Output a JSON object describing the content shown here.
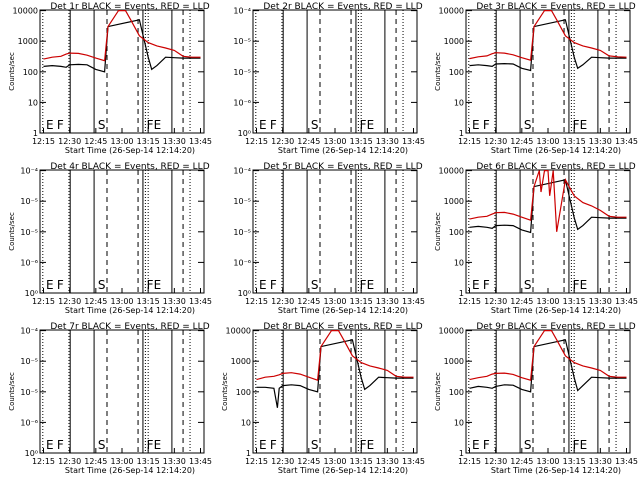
{
  "chart_data": [
    {
      "type": "line",
      "title": "Det 1r BLACK = Events, RED = LLD",
      "ylabel": "Counts/sec",
      "xlabel": "Start Time (26-Sep-14 12:14:20)",
      "yscale": "log",
      "ytick_labels": [
        "1",
        "10",
        "100",
        "1000",
        "10000"
      ],
      "xtick_labels": [
        "12:15",
        "12:30",
        "12:45",
        "13:00",
        "13:15",
        "13:30",
        "13:45"
      ],
      "marker_labels": [
        "E",
        "F",
        "S",
        "F",
        "E"
      ],
      "data_present": true,
      "series": [
        {
          "name": "BLACK = Events",
          "color": "#000000",
          "x": [
            "12:15",
            "12:20",
            "12:25",
            "12:28",
            "12:30",
            "12:35",
            "12:40",
            "12:45",
            "12:50",
            "12:52",
            "13:10",
            "13:15",
            "13:17",
            "13:20",
            "13:25",
            "13:30",
            "13:35",
            "13:40",
            "13:45"
          ],
          "values": [
            150,
            160,
            150,
            140,
            170,
            175,
            170,
            120,
            100,
            3000,
            5000,
            300,
            120,
            160,
            300,
            290,
            280,
            280,
            280
          ]
        },
        {
          "name": "RED = LLD",
          "color": "#cc0000",
          "x": [
            "12:15",
            "12:20",
            "12:25",
            "12:28",
            "12:30",
            "12:35",
            "12:40",
            "12:45",
            "12:50",
            "12:52",
            "12:58",
            "13:02",
            "13:05",
            "13:10",
            "13:15",
            "13:20",
            "13:25",
            "13:30",
            "13:35",
            "13:40",
            "13:45"
          ],
          "values": [
            260,
            300,
            320,
            380,
            410,
            400,
            350,
            280,
            230,
            3000,
            10000,
            10000,
            5000,
            1500,
            900,
            700,
            600,
            500,
            320,
            300,
            300
          ]
        }
      ]
    },
    {
      "type": "line",
      "title": "Det 2r BLACK = Events, RED = LLD",
      "ylabel": "",
      "xlabel": "Start Time (26-Sep-14 12:14:20)",
      "yscale": "log",
      "ytick_labels": [
        "10⁰",
        "10⁻⁶",
        "10⁻⁵",
        "10⁻⁵",
        "10⁻⁴"
      ],
      "xtick_labels": [
        "12:15",
        "12:30",
        "12:45",
        "13:00",
        "13:15",
        "13:30",
        "13:45"
      ],
      "marker_labels": [
        "E",
        "F",
        "S",
        "F",
        "E"
      ],
      "data_present": false,
      "series": []
    },
    {
      "type": "line",
      "title": "Det 3r BLACK = Events, RED = LLD",
      "ylabel": "Counts/sec",
      "xlabel": "Start Time (26-Sep-14 12:14:20)",
      "yscale": "log",
      "ytick_labels": [
        "1",
        "10",
        "100",
        "1000",
        "10000"
      ],
      "xtick_labels": [
        "12:15",
        "12:30",
        "12:45",
        "13:00",
        "13:15",
        "13:30",
        "13:45"
      ],
      "marker_labels": [
        "E",
        "F",
        "S",
        "F",
        "E"
      ],
      "data_present": true,
      "series": [
        {
          "name": "BLACK = Events",
          "color": "#000000",
          "x": [
            "12:15",
            "12:20",
            "12:25",
            "12:28",
            "12:30",
            "12:35",
            "12:40",
            "12:45",
            "12:50",
            "12:52",
            "13:10",
            "13:15",
            "13:17",
            "13:20",
            "13:25",
            "13:30",
            "13:35",
            "13:40",
            "13:45"
          ],
          "values": [
            160,
            170,
            160,
            150,
            180,
            185,
            180,
            130,
            110,
            3000,
            5000,
            300,
            130,
            170,
            300,
            290,
            280,
            280,
            280
          ]
        },
        {
          "name": "RED = LLD",
          "color": "#cc0000",
          "x": [
            "12:15",
            "12:20",
            "12:25",
            "12:28",
            "12:30",
            "12:35",
            "12:40",
            "12:45",
            "12:50",
            "12:52",
            "12:58",
            "13:02",
            "13:05",
            "13:10",
            "13:15",
            "13:20",
            "13:25",
            "13:30",
            "13:35",
            "13:40",
            "13:45"
          ],
          "values": [
            270,
            310,
            330,
            390,
            420,
            410,
            360,
            290,
            240,
            3000,
            10000,
            10000,
            5000,
            1500,
            900,
            700,
            600,
            500,
            330,
            310,
            300
          ]
        }
      ]
    },
    {
      "type": "line",
      "title": "Det 4r BLACK = Events, RED = LLD",
      "ylabel": "Counts/sec",
      "xlabel": "Start Time (26-Sep-14 12:14:20)",
      "yscale": "log",
      "ytick_labels": [
        "10⁰",
        "10⁻⁶",
        "10⁻⁵",
        "10⁻⁵",
        "10⁻⁴"
      ],
      "xtick_labels": [
        "12:15",
        "12:30",
        "12:45",
        "13:00",
        "13:15",
        "13:30",
        "13:45"
      ],
      "marker_labels": [
        "E",
        "F",
        "S",
        "F",
        "E"
      ],
      "data_present": false,
      "series": []
    },
    {
      "type": "line",
      "title": "Det 5r BLACK = Events, RED = LLD",
      "ylabel": "",
      "xlabel": "Start Time (26-Sep-14 12:14:20)",
      "yscale": "log",
      "ytick_labels": [
        "10⁰",
        "10⁻⁶",
        "10⁻⁵",
        "10⁻⁵",
        "10⁻⁴"
      ],
      "xtick_labels": [
        "12:15",
        "12:30",
        "12:45",
        "13:00",
        "13:15",
        "13:30",
        "13:45"
      ],
      "marker_labels": [
        "E",
        "F",
        "S",
        "F",
        "E"
      ],
      "data_present": false,
      "series": []
    },
    {
      "type": "line",
      "title": "Det 6r BLACK = Events, RED = LLD",
      "ylabel": "Counts/sec",
      "xlabel": "Start Time (26-Sep-14 12:14:20)",
      "yscale": "log",
      "ytick_labels": [
        "1",
        "10",
        "100",
        "1000",
        "10000"
      ],
      "xtick_labels": [
        "12:15",
        "12:30",
        "12:45",
        "13:00",
        "13:15",
        "13:30",
        "13:45"
      ],
      "marker_labels": [
        "E",
        "F",
        "S",
        "F",
        "E"
      ],
      "data_present": true,
      "series": [
        {
          "name": "BLACK = Events",
          "color": "#000000",
          "x": [
            "12:15",
            "12:20",
            "12:25",
            "12:28",
            "12:30",
            "12:35",
            "12:40",
            "12:45",
            "12:50",
            "12:52",
            "13:10",
            "13:15",
            "13:17",
            "13:20",
            "13:25",
            "13:30",
            "13:35",
            "13:40",
            "13:45"
          ],
          "values": [
            140,
            150,
            140,
            130,
            160,
            165,
            160,
            115,
            95,
            3000,
            5000,
            290,
            120,
            160,
            300,
            290,
            280,
            280,
            280
          ]
        },
        {
          "name": "RED = LLD",
          "color": "#cc0000",
          "x": [
            "12:15",
            "12:20",
            "12:25",
            "12:28",
            "12:30",
            "12:35",
            "12:40",
            "12:45",
            "12:50",
            "12:52",
            "12:55",
            "12:56",
            "12:58",
            "13:00",
            "13:01",
            "13:03",
            "13:05",
            "13:10",
            "13:15",
            "13:20",
            "13:25",
            "13:30",
            "13:35",
            "13:40",
            "13:45"
          ],
          "values": [
            260,
            300,
            320,
            380,
            420,
            430,
            380,
            300,
            240,
            3000,
            10000,
            2000,
            10000,
            10000,
            1500,
            10000,
            100,
            5000,
            1500,
            900,
            700,
            500,
            320,
            300,
            300
          ]
        }
      ]
    },
    {
      "type": "line",
      "title": "Det 7r BLACK = Events, RED = LLD",
      "ylabel": "Counts/sec",
      "xlabel": "Start Time (26-Sep-14 12:14:20)",
      "yscale": "log",
      "ytick_labels": [
        "10⁰",
        "10⁻⁶",
        "10⁻⁵",
        "10⁻⁵",
        "10⁻⁴"
      ],
      "xtick_labels": [
        "12:15",
        "12:30",
        "12:45",
        "13:00",
        "13:15",
        "13:30",
        "13:45"
      ],
      "marker_labels": [
        "E",
        "F",
        "S",
        "F",
        "E"
      ],
      "data_present": false,
      "series": []
    },
    {
      "type": "line",
      "title": "Det 8r BLACK = Events, RED = LLD",
      "ylabel": "Counts/sec",
      "xlabel": "Start Time (26-Sep-14 12:14:20)",
      "yscale": "log",
      "ytick_labels": [
        "1",
        "10",
        "100",
        "1000",
        "10000"
      ],
      "xtick_labels": [
        "12:15",
        "12:30",
        "12:45",
        "13:00",
        "13:15",
        "13:30",
        "13:45"
      ],
      "marker_labels": [
        "E",
        "F",
        "S",
        "F",
        "E"
      ],
      "data_present": true,
      "series": [
        {
          "name": "BLACK = Events",
          "color": "#000000",
          "x": [
            "12:15",
            "12:20",
            "12:25",
            "12:27",
            "12:28",
            "12:30",
            "12:35",
            "12:40",
            "12:45",
            "12:50",
            "12:52",
            "13:10",
            "13:15",
            "13:17",
            "13:20",
            "13:25",
            "13:30",
            "13:35",
            "13:40",
            "13:45"
          ],
          "values": [
            140,
            140,
            130,
            30,
            130,
            160,
            170,
            160,
            120,
            100,
            3000,
            5000,
            290,
            120,
            160,
            300,
            290,
            280,
            280,
            280
          ]
        },
        {
          "name": "RED = LLD",
          "color": "#cc0000",
          "x": [
            "12:15",
            "12:20",
            "12:25",
            "12:28",
            "12:30",
            "12:35",
            "12:40",
            "12:45",
            "12:50",
            "12:52",
            "12:58",
            "13:02",
            "13:05",
            "13:10",
            "13:15",
            "13:20",
            "13:25",
            "13:30",
            "13:35",
            "13:40",
            "13:45"
          ],
          "values": [
            250,
            300,
            320,
            360,
            400,
            420,
            380,
            300,
            240,
            3000,
            10000,
            10000,
            5000,
            1500,
            900,
            700,
            600,
            500,
            320,
            300,
            300
          ]
        }
      ]
    },
    {
      "type": "line",
      "title": "Det 9r BLACK = Events, RED = LLD",
      "ylabel": "Counts/sec",
      "xlabel": "Start Time (26-Sep-14 12:14:20)",
      "yscale": "log",
      "ytick_labels": [
        "1",
        "10",
        "100",
        "1000",
        "10000"
      ],
      "xtick_labels": [
        "12:15",
        "12:30",
        "12:45",
        "13:00",
        "13:15",
        "13:30",
        "13:45"
      ],
      "marker_labels": [
        "E",
        "F",
        "S",
        "F",
        "E"
      ],
      "data_present": true,
      "series": [
        {
          "name": "BLACK = Events",
          "color": "#000000",
          "x": [
            "12:15",
            "12:20",
            "12:25",
            "12:28",
            "12:30",
            "12:35",
            "12:40",
            "12:45",
            "12:50",
            "12:52",
            "13:10",
            "13:15",
            "13:17",
            "13:20",
            "13:25",
            "13:30",
            "13:35",
            "13:40",
            "13:45"
          ],
          "values": [
            130,
            150,
            140,
            130,
            150,
            170,
            165,
            120,
            100,
            3000,
            5000,
            290,
            110,
            160,
            300,
            290,
            280,
            280,
            280
          ]
        },
        {
          "name": "RED = LLD",
          "color": "#cc0000",
          "x": [
            "12:15",
            "12:20",
            "12:25",
            "12:28",
            "12:30",
            "12:35",
            "12:40",
            "12:45",
            "12:50",
            "12:52",
            "12:58",
            "13:02",
            "13:05",
            "13:10",
            "13:15",
            "13:20",
            "13:25",
            "13:30",
            "13:35",
            "13:40",
            "13:45"
          ],
          "values": [
            250,
            290,
            320,
            380,
            400,
            410,
            370,
            290,
            240,
            3000,
            10000,
            10000,
            5000,
            1500,
            900,
            700,
            600,
            500,
            320,
            300,
            300
          ]
        }
      ]
    }
  ]
}
